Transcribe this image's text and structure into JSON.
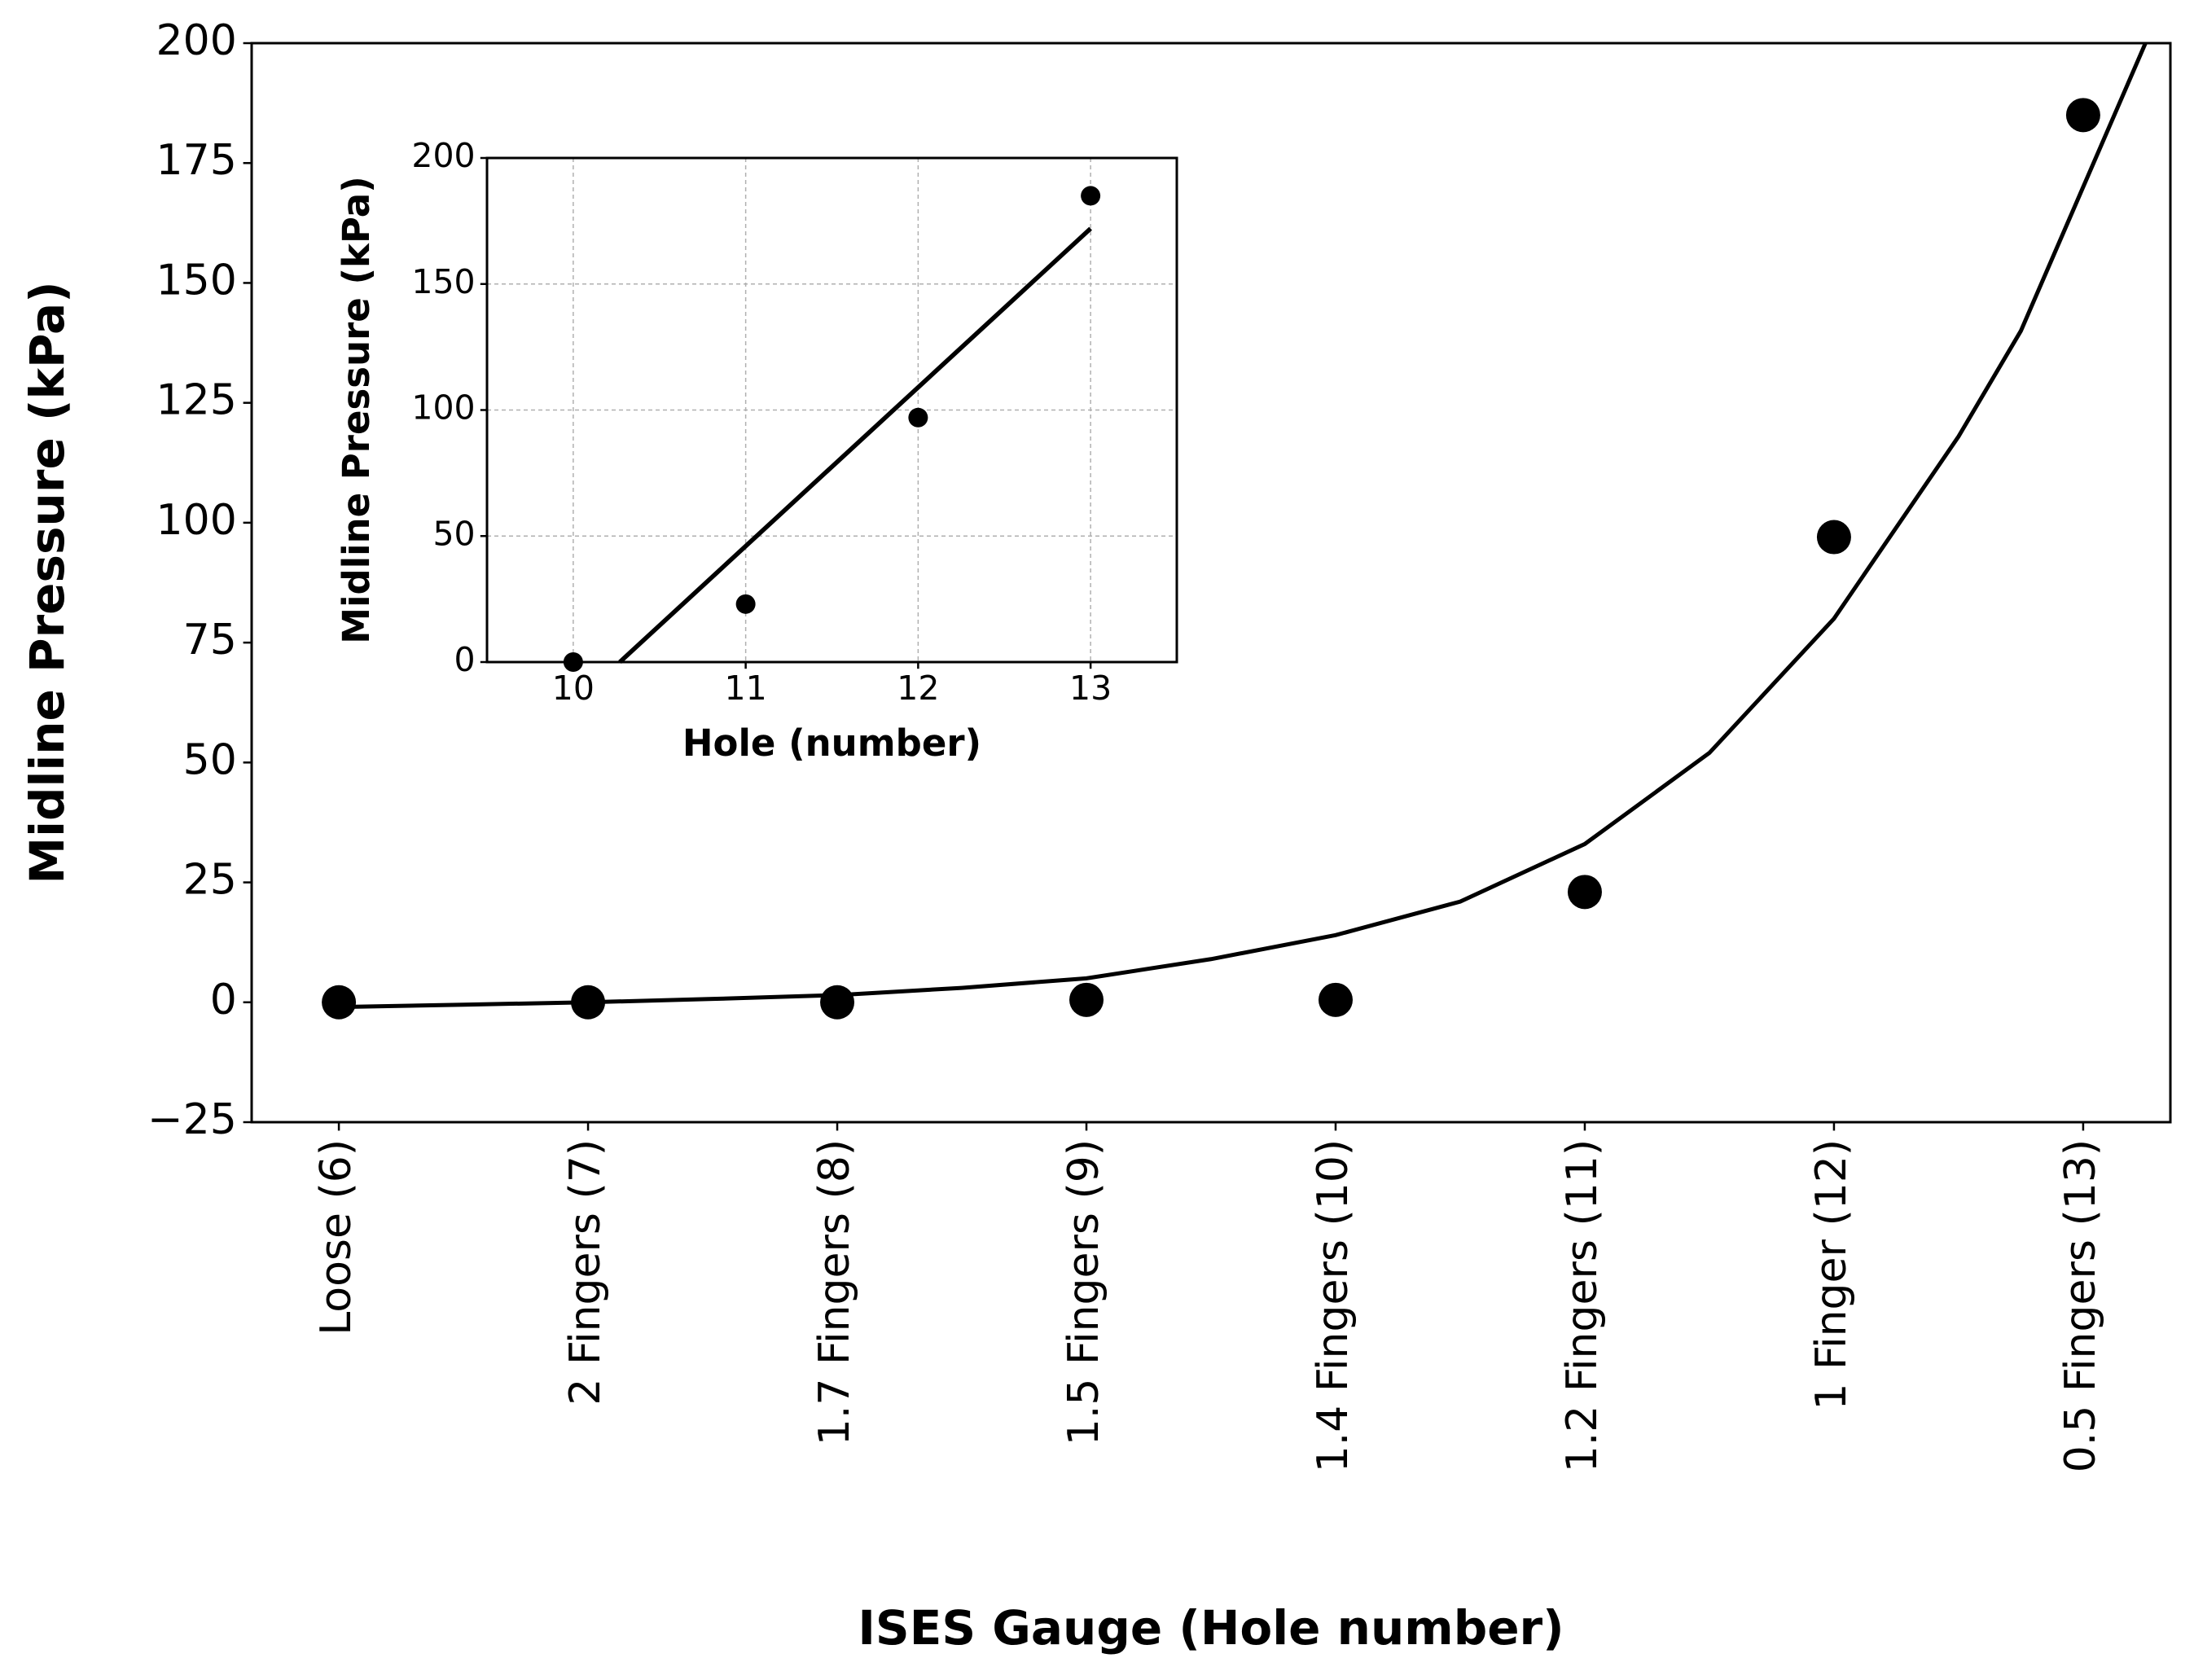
{
  "chart_data": [
    {
      "type": "scatter",
      "xlabel": "ISES Gauge (Hole number)",
      "ylabel": "Midline Pressure (kPa)",
      "categories": [
        "Loose (6)",
        "2 Fingers (7)",
        "1.7 Fingers (8)",
        "1.5 Fingers (9)",
        "1.4 Fingers (10)",
        "1.2 Fingers (11)",
        "1 Finger (12)",
        "0.5 Fingers (13)"
      ],
      "values": [
        0,
        0,
        0,
        0.5,
        0.5,
        23,
        97,
        185
      ],
      "color": "#000000",
      "fit": {
        "x": [
          0,
          0.5,
          1,
          1.5,
          2,
          2.5,
          3,
          3.5,
          4,
          4.5,
          5,
          5.5,
          6,
          6.5,
          6.75,
          7,
          7.25
        ],
        "values": [
          -1,
          -0.5,
          0,
          0.7,
          1.5,
          3,
          5,
          9,
          14,
          21,
          33,
          52,
          80,
          118,
          140,
          170,
          200
        ]
      },
      "ylim": [
        -25,
        200
      ],
      "yticks": [
        {
          "value": -25,
          "label": "−25"
        },
        0,
        25,
        50,
        75,
        100,
        125,
        150,
        175,
        200
      ],
      "grid": false
    },
    {
      "type": "scatter",
      "xlabel": "Hole (number)",
      "ylabel": "Midline Pressure (kPa)",
      "x": [
        10,
        11,
        12,
        13
      ],
      "values": [
        0,
        23,
        97,
        185
      ],
      "color": "#000000",
      "fit": {
        "x": [
          10.27,
          13
        ],
        "values": [
          0,
          172
        ]
      },
      "xlim": [
        9.5,
        13.5
      ],
      "xticks": [
        10,
        11,
        12,
        13
      ],
      "ylim": [
        0,
        200
      ],
      "yticks": [
        0,
        50,
        100,
        150,
        200
      ],
      "grid": true
    }
  ]
}
